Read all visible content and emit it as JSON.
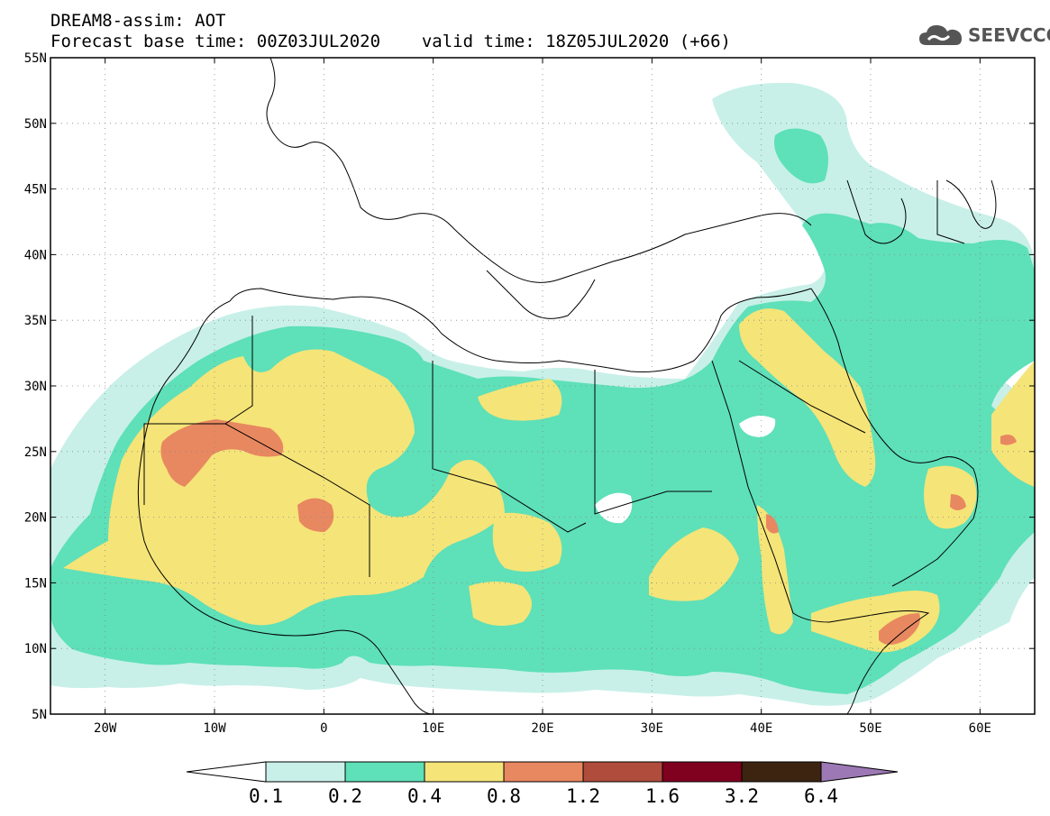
{
  "header": {
    "title": "DREAM8-assim: AOT",
    "base_time": "Forecast base time: 00Z03JUL2020",
    "valid_time": "valid time: 18Z05JUL2020 (+66)"
  },
  "logo": {
    "text": "SEEVCCC",
    "icon": "cloud-icon"
  },
  "map": {
    "lat_range": [
      5,
      55
    ],
    "lon_range": [
      -25,
      65
    ],
    "lat_labels": [
      "55N",
      "50N",
      "45N",
      "40N",
      "35N",
      "30N",
      "25N",
      "20N",
      "15N",
      "10N",
      "5N"
    ],
    "lat_values": [
      55,
      50,
      45,
      40,
      35,
      30,
      25,
      20,
      15,
      10,
      5
    ],
    "lon_labels": [
      "20W",
      "10W",
      "0",
      "10E",
      "20E",
      "30E",
      "40E",
      "50E",
      "60E"
    ],
    "lon_values": [
      -20,
      -10,
      0,
      10,
      20,
      30,
      40,
      50,
      60
    ]
  },
  "colorbar": {
    "labels": [
      "0.1",
      "0.2",
      "0.4",
      "0.8",
      "1.2",
      "1.6",
      "3.2",
      "6.4"
    ],
    "colors": [
      "#c8f0e8",
      "#5ee0b8",
      "#f5e478",
      "#e88860",
      "#b04c3c",
      "#800020",
      "#3c2410",
      "#9c78b4"
    ],
    "under_color": "#ffffff"
  }
}
